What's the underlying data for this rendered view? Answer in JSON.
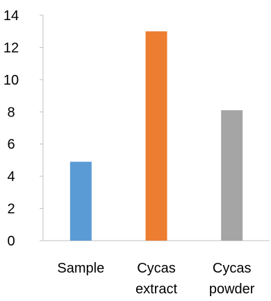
{
  "chart_data": {
    "type": "bar",
    "title": "",
    "xlabel": "",
    "ylabel": "",
    "categories": [
      [
        "Sample"
      ],
      [
        "Cycas",
        "extract"
      ],
      [
        "Cycas",
        "powder"
      ]
    ],
    "values": [
      4.9,
      13,
      8.1
    ],
    "colors": [
      "#5b9bd5",
      "#ed7d31",
      "#a5a5a5"
    ],
    "ylim": [
      0,
      14
    ],
    "yticks": [
      0,
      2,
      4,
      6,
      8,
      10,
      12,
      14
    ],
    "grid": false,
    "legend": "none"
  }
}
